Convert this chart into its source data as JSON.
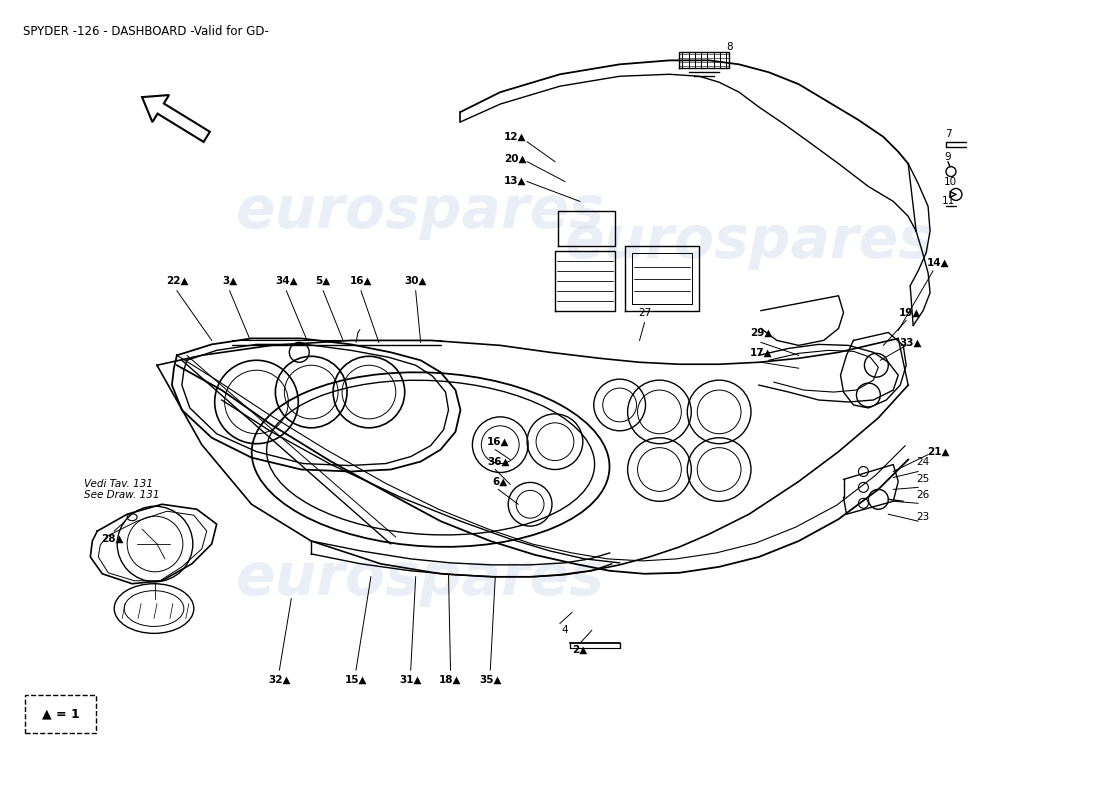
{
  "title": "SPYDER -126 - DASHBOARD -Valid for GD-",
  "bg_color": "#ffffff",
  "watermark_text": "eurospares",
  "watermark_color": "#c8d4e8",
  "watermark_fontsize": 42,
  "watermark_alpha": 0.38,
  "label_fontsize": 7.5,
  "title_fontsize": 8.5,
  "legend_text": "▲ = 1",
  "note_text": "Vedi Tav. 131\nSee Draw. 131"
}
